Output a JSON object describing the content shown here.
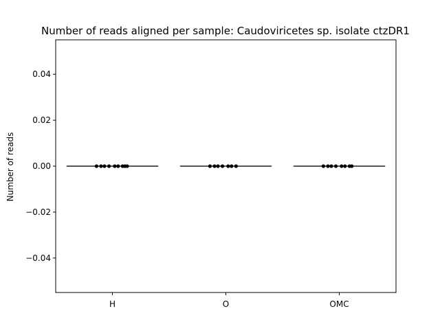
{
  "chart_data": {
    "type": "box",
    "title": "Number of reads aligned per sample: Caudoviricetes sp. isolate ctzDR1",
    "xlabel": "",
    "ylabel": "Number of reads",
    "categories": [
      "H",
      "O",
      "OMC"
    ],
    "ylim": [
      -0.055,
      0.055
    ],
    "yticks": [
      -0.04,
      -0.02,
      0.0,
      0.02,
      0.04
    ],
    "ytick_labels": [
      "−0.04",
      "−0.02",
      "0.00",
      "0.02",
      "0.04"
    ],
    "grid": false,
    "boxes": [
      {
        "category": "H",
        "min": 0,
        "q1": 0,
        "median": 0,
        "q3": 0,
        "max": 0
      },
      {
        "category": "O",
        "min": 0,
        "q1": 0,
        "median": 0,
        "q3": 0,
        "max": 0
      },
      {
        "category": "OMC",
        "min": 0,
        "q1": 0,
        "median": 0,
        "q3": 0,
        "max": 0
      }
    ],
    "points": [
      {
        "category": "H",
        "values": [
          0,
          0,
          0,
          0,
          0,
          0,
          0,
          0,
          0
        ]
      },
      {
        "category": "O",
        "values": [
          0,
          0,
          0,
          0,
          0,
          0,
          0
        ]
      },
      {
        "category": "OMC",
        "values": [
          0,
          0,
          0,
          0,
          0,
          0,
          0,
          0
        ]
      }
    ],
    "colors": {
      "box_line": "#3f3f3f",
      "point": "#000000",
      "axis": "#000000"
    }
  }
}
